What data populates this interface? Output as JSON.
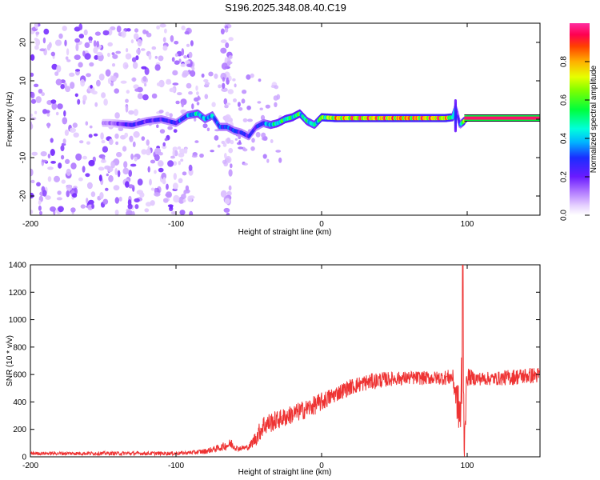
{
  "figure_title": "S196.2025.348.08.40.C19",
  "chart_data": [
    {
      "type": "heatmap",
      "title": "S196.2025.348.08.40.C19",
      "xlabel": "Height of straight line (km)",
      "ylabel": "Frequency (Hz)",
      "xlim": [
        -200,
        150
      ],
      "ylim": [
        -25,
        25
      ],
      "xticks": [
        -200,
        -100,
        0,
        100
      ],
      "yticks": [
        -20,
        -10,
        0,
        10,
        20
      ],
      "colorbar": {
        "label": "Normalized spectral amplitude",
        "range": [
          0,
          1
        ],
        "ticks": [
          0.0,
          0.2,
          0.4,
          0.6,
          0.8
        ],
        "tick_labels": [
          "0.0",
          "0.2",
          "0.4",
          "0.6",
          "0.8"
        ],
        "colormap": "hsv-reversed (violet low to red high)"
      },
      "ridge": {
        "description": "Main spectral ridge tracking the line frequency",
        "x": [
          -145,
          -130,
          -120,
          -110,
          -100,
          -92,
          -85,
          -80,
          -75,
          -70,
          -65,
          -60,
          -55,
          -50,
          -45,
          -40,
          -35,
          -30,
          -25,
          -20,
          -15,
          -10,
          -5,
          0,
          10,
          20,
          30,
          40,
          50,
          60,
          70,
          80,
          85,
          90,
          92,
          95,
          100,
          110,
          120,
          130,
          140,
          150
        ],
        "y": [
          -1,
          -1.5,
          -0.5,
          0,
          -1,
          1,
          1.5,
          0,
          1,
          -2,
          -2,
          -3,
          -3.5,
          -4.5,
          -2,
          -1,
          -1.5,
          -1,
          0,
          0.5,
          1.5,
          -0.5,
          -1.5,
          0.5,
          0.3,
          0.3,
          0.3,
          0.3,
          0.3,
          0.3,
          0.3,
          0.3,
          0.3,
          0.5,
          3,
          -1.5,
          0.3,
          0.3,
          0.3,
          0.3,
          0.3,
          0.3
        ],
        "amplitude": [
          0.15,
          0.3,
          0.25,
          0.3,
          0.3,
          0.4,
          0.5,
          0.45,
          0.45,
          0.35,
          0.35,
          0.35,
          0.3,
          0.3,
          0.3,
          0.35,
          0.5,
          0.55,
          0.6,
          0.6,
          0.6,
          0.55,
          0.5,
          0.7,
          0.85,
          0.9,
          0.92,
          0.93,
          0.93,
          0.93,
          0.93,
          0.93,
          0.93,
          0.6,
          0.3,
          0.3,
          0.95,
          0.97,
          0.97,
          0.97,
          0.97,
          0.97
        ]
      },
      "noise_regions": [
        {
          "x_range": [
            -200,
            -88
          ],
          "y_range": [
            -25,
            25
          ],
          "amplitude_range": [
            0.05,
            0.2
          ],
          "description": "scattered low-amplitude noise blobs"
        },
        {
          "x_range": [
            -68,
            -62
          ],
          "y_range": [
            -25,
            25
          ],
          "amplitude_range": [
            0.05,
            0.15
          ],
          "description": "narrow vertical noise stripe"
        }
      ]
    },
    {
      "type": "line",
      "xlabel": "Height of straight line (km)",
      "ylabel": "SNR (10 * v/v)",
      "xlim": [
        -200,
        150
      ],
      "ylim": [
        0,
        1400
      ],
      "xticks": [
        -200,
        -100,
        0,
        100
      ],
      "yticks": [
        0,
        200,
        400,
        600,
        800,
        1000,
        1200,
        1400
      ],
      "series": [
        {
          "name": "SNR",
          "color": "#ee3333",
          "x_envelope": [
            -200,
            -150,
            -100,
            -90,
            -80,
            -70,
            -62,
            -58,
            -50,
            -45,
            -40,
            -30,
            -20,
            -10,
            0,
            10,
            20,
            30,
            40,
            50,
            60,
            70,
            80,
            90,
            95,
            97,
            98,
            100,
            102,
            105,
            110,
            120,
            130,
            140,
            150
          ],
          "mean": [
            25,
            25,
            25,
            30,
            40,
            65,
            95,
            60,
            70,
            140,
            230,
            270,
            310,
            350,
            400,
            460,
            510,
            540,
            560,
            570,
            575,
            575,
            575,
            580,
            300,
            500,
            150,
            590,
            580,
            570,
            570,
            570,
            580,
            590,
            595
          ],
          "spread": [
            12,
            14,
            14,
            14,
            20,
            25,
            40,
            20,
            20,
            60,
            80,
            70,
            70,
            70,
            70,
            60,
            60,
            60,
            60,
            50,
            50,
            50,
            50,
            60,
            200,
            600,
            200,
            80,
            60,
            50,
            50,
            50,
            60,
            60,
            60
          ],
          "peak": {
            "x": 97,
            "y": 1400
          }
        }
      ]
    }
  ]
}
